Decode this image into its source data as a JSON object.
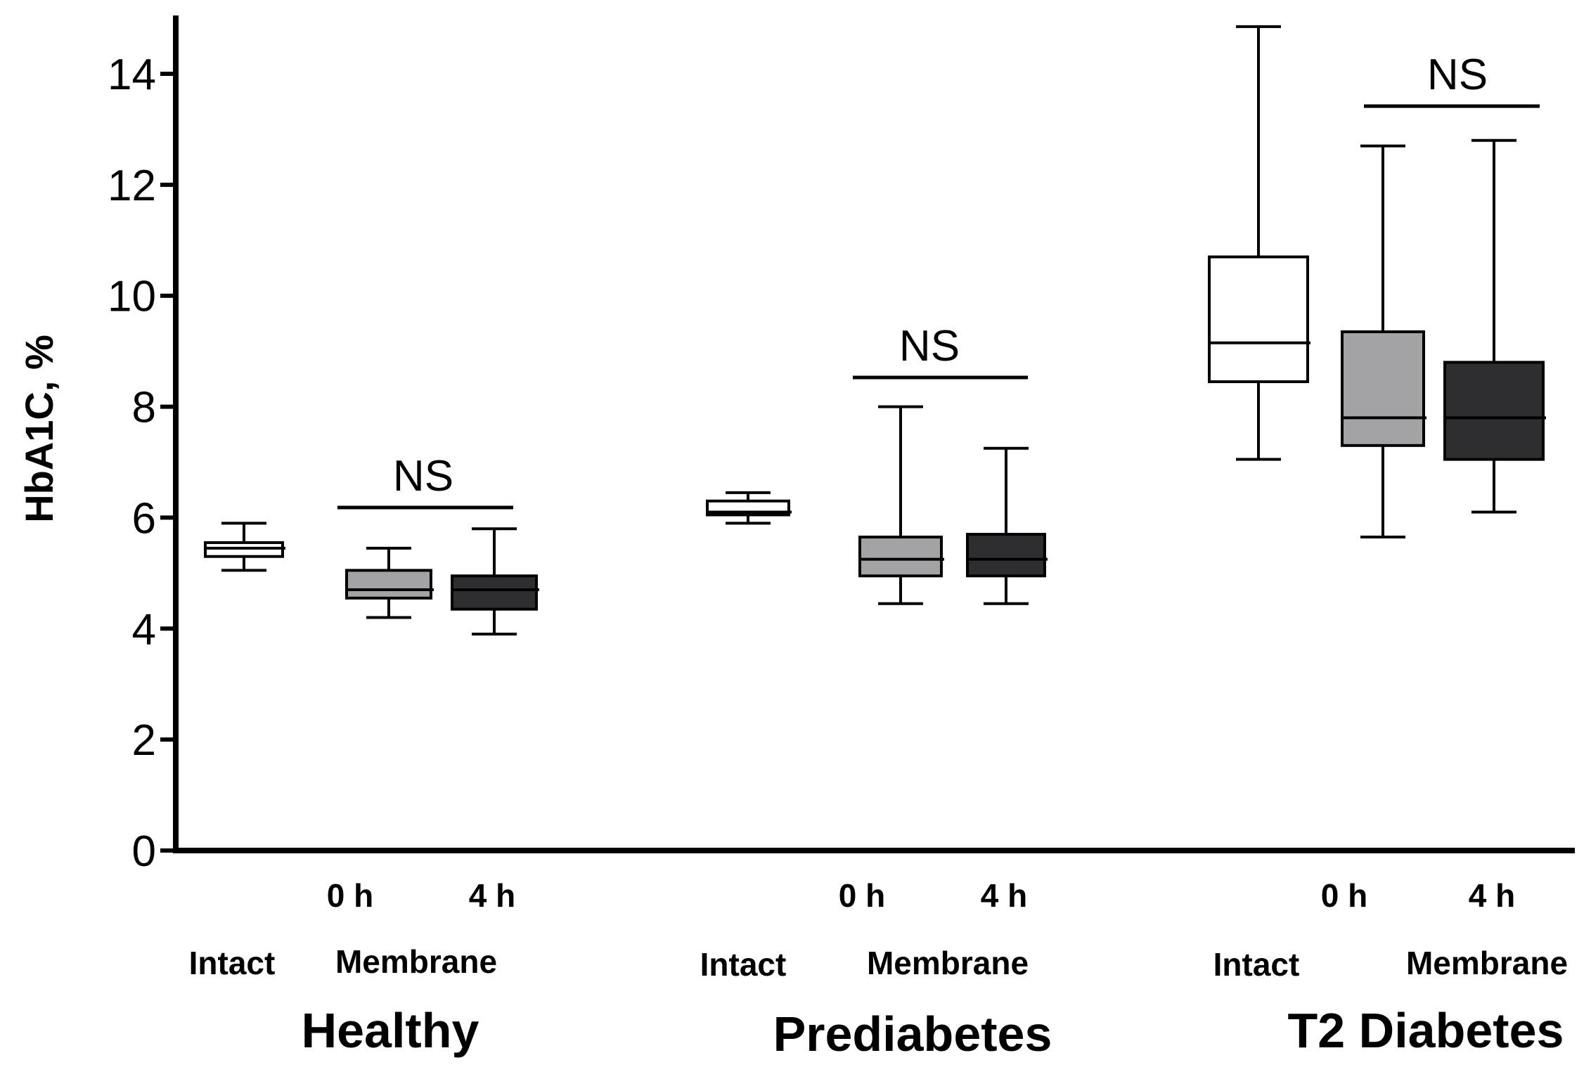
{
  "chart_data": {
    "type": "boxplot",
    "ylabel": "HbA1C, %",
    "ylim": [
      0,
      15
    ],
    "yticks": [
      "0",
      "2",
      "4",
      "6",
      "8",
      "10",
      "12",
      "14"
    ],
    "ytick_values": [
      0,
      2,
      4,
      6,
      8,
      10,
      12,
      14
    ],
    "grid": false,
    "fill_colors": {
      "intact": "#ffffff",
      "membrane_0h": "#a3a3a6",
      "membrane_4h": "#2e2e30"
    },
    "groups": [
      {
        "label": "Healthy",
        "intact_label": "Intact",
        "membrane_label": "Membrane",
        "ns_label": "NS",
        "boxes": [
          {
            "key": "intact",
            "sublabel": "",
            "min": 5.05,
            "q1": 5.3,
            "median": 5.45,
            "q3": 5.55,
            "max": 5.9
          },
          {
            "key": "membrane_0h",
            "sublabel": "0 h",
            "min": 4.2,
            "q1": 4.55,
            "median": 4.7,
            "q3": 5.05,
            "max": 5.45
          },
          {
            "key": "membrane_4h",
            "sublabel": "4 h",
            "min": 3.9,
            "q1": 4.35,
            "median": 4.7,
            "q3": 4.95,
            "max": 5.8
          }
        ]
      },
      {
        "label": "Prediabetes",
        "intact_label": "Intact",
        "membrane_label": "Membrane",
        "ns_label": "NS",
        "boxes": [
          {
            "key": "intact",
            "sublabel": "",
            "min": 5.9,
            "q1": 6.05,
            "median": 6.1,
            "q3": 6.3,
            "max": 6.45
          },
          {
            "key": "membrane_0h",
            "sublabel": "0 h",
            "min": 4.45,
            "q1": 4.95,
            "median": 5.25,
            "q3": 5.65,
            "max": 8.0
          },
          {
            "key": "membrane_4h",
            "sublabel": "4 h",
            "min": 4.45,
            "q1": 4.95,
            "median": 5.25,
            "q3": 5.7,
            "max": 7.25
          }
        ]
      },
      {
        "label": "T2 Diabetes",
        "intact_label": "Intact",
        "membrane_label": "Membrane",
        "ns_label": "NS",
        "boxes": [
          {
            "key": "intact",
            "sublabel": "",
            "min": 7.05,
            "q1": 8.45,
            "median": 9.15,
            "q3": 10.7,
            "max": 14.85
          },
          {
            "key": "membrane_0h",
            "sublabel": "0 h",
            "min": 5.65,
            "q1": 7.3,
            "median": 7.8,
            "q3": 9.35,
            "max": 12.7
          },
          {
            "key": "membrane_4h",
            "sublabel": "4 h",
            "min": 6.1,
            "q1": 7.05,
            "median": 7.8,
            "q3": 8.8,
            "max": 12.8
          }
        ]
      }
    ]
  }
}
